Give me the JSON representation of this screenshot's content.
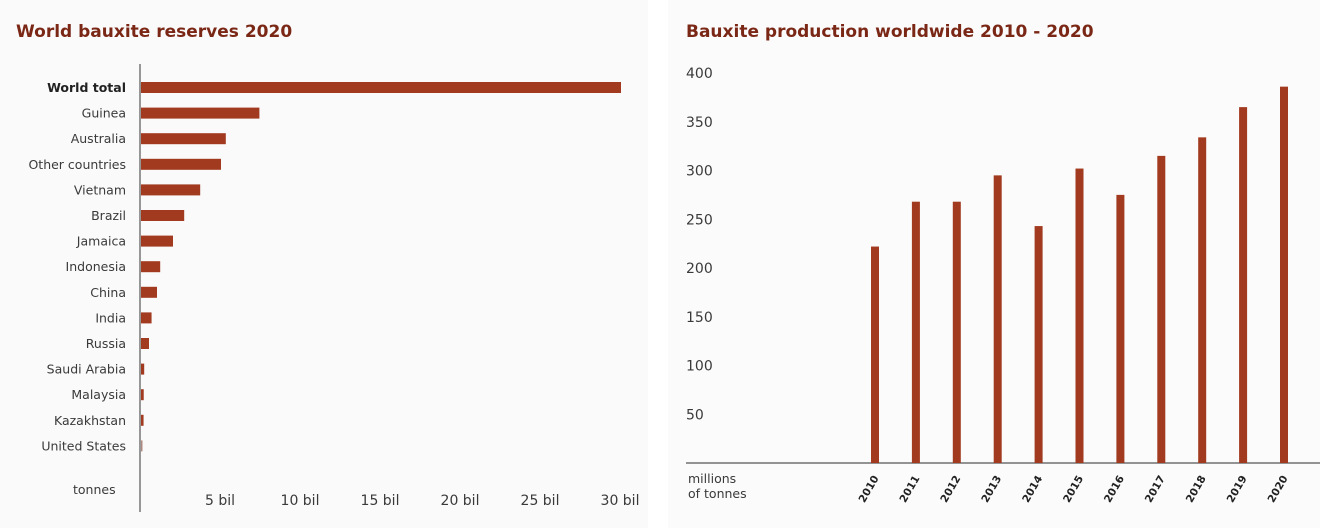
{
  "colors": {
    "bar": "#a13a1f",
    "us_bar": "#b08a80",
    "title": "#7a2716",
    "axis": "#555555"
  },
  "chart_data": [
    {
      "type": "bar",
      "orientation": "horizontal",
      "title": "World bauxite reserves 2020",
      "unit_label": "tonnes",
      "categories": [
        "World total",
        "Guinea",
        "Australia",
        "Other countries",
        "Vietnam",
        "Brazil",
        "Jamaica",
        "Indonesia",
        "China",
        "India",
        "Russia",
        "Saudi Arabia",
        "Malaysia",
        "Kazakhstan",
        "United States"
      ],
      "values": [
        30.0,
        7.4,
        5.3,
        5.0,
        3.7,
        2.7,
        2.0,
        1.2,
        1.0,
        0.66,
        0.5,
        0.2,
        0.17,
        0.16,
        0.02
      ],
      "value_unit": "billion tonnes",
      "xticks": [
        "5 bil",
        "10 bil",
        "15 bil",
        "20 bil",
        "25 bil",
        "30 bil"
      ],
      "xtick_values": [
        5,
        10,
        15,
        20,
        25,
        30
      ],
      "xlim": [
        0,
        31
      ]
    },
    {
      "type": "bar",
      "title": "Bauxite production worldwide 2010 - 2020",
      "unit_label": [
        "millions",
        "of tonnes"
      ],
      "categories": [
        "2010",
        "2011",
        "2012",
        "2013",
        "2014",
        "2015",
        "2016",
        "2017",
        "2018",
        "2019",
        "2020"
      ],
      "values": [
        222,
        268,
        268,
        295,
        243,
        302,
        275,
        315,
        334,
        365,
        386
      ],
      "yticks": [
        "50",
        "100",
        "150",
        "200",
        "250",
        "300",
        "350",
        "400"
      ],
      "ytick_values": [
        50,
        100,
        150,
        200,
        250,
        300,
        350,
        400
      ],
      "ylim": [
        0,
        400
      ]
    }
  ]
}
